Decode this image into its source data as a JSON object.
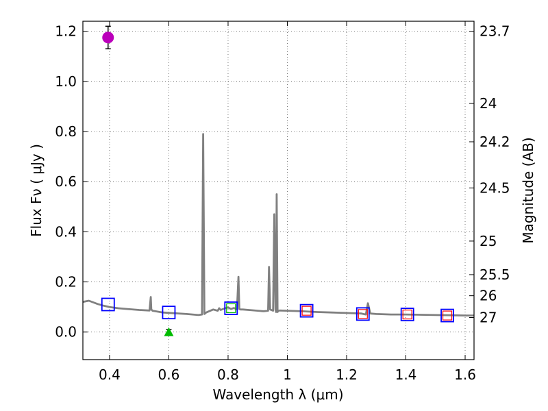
{
  "chart_data": {
    "type": "line",
    "xlabel": "Wavelength  λ (μm)",
    "ylabel": "Flux  Fν  ( μJy )",
    "ylabel_right": "Magnitude (AB)",
    "xlim": [
      0.31,
      1.63
    ],
    "ylim": [
      -0.11,
      1.24
    ],
    "x_ticks": [
      0.4,
      0.6,
      0.8,
      1.0,
      1.2,
      1.4,
      1.6
    ],
    "x_tick_labels": [
      "0.4",
      "0.6",
      "0.8",
      "1",
      "1.2",
      "1.4",
      "1.6"
    ],
    "y_ticks": [
      0.0,
      0.2,
      0.4,
      0.6,
      0.8,
      1.0,
      1.2
    ],
    "y_tick_labels": [
      "0.0",
      "0.2",
      "0.4",
      "0.6",
      "0.8",
      "1.0",
      "1.2"
    ],
    "right_ticks": [
      {
        "label": "23.7",
        "flux": 1.2
      },
      {
        "label": "24",
        "flux": 0.912
      },
      {
        "label": "24.2",
        "flux": 0.759
      },
      {
        "label": "24.5",
        "flux": 0.575
      },
      {
        "label": "25",
        "flux": 0.363
      },
      {
        "label": "25.5",
        "flux": 0.229
      },
      {
        "label": "26",
        "flux": 0.145
      },
      {
        "label": "27",
        "flux": 0.058
      }
    ],
    "grid": true,
    "series": [
      {
        "name": "model SED",
        "style": "line",
        "color": "#808080",
        "x": [
          0.31,
          0.33,
          0.36,
          0.38,
          0.4,
          0.43,
          0.46,
          0.5,
          0.535,
          0.539,
          0.541,
          0.545,
          0.58,
          0.62,
          0.66,
          0.7,
          0.712,
          0.716,
          0.72,
          0.726,
          0.75,
          0.765,
          0.77,
          0.775,
          0.79,
          0.8,
          0.81,
          0.82,
          0.83,
          0.835,
          0.838,
          0.842,
          0.85,
          0.88,
          0.92,
          0.935,
          0.938,
          0.942,
          0.952,
          0.956,
          0.96,
          0.962,
          0.964,
          0.967,
          0.97,
          0.975,
          1.0,
          1.05,
          1.1,
          1.15,
          1.2,
          1.25,
          1.265,
          1.272,
          1.28,
          1.3,
          1.35,
          1.4,
          1.45,
          1.5,
          1.55,
          1.6,
          1.63
        ],
        "values": [
          0.12,
          0.125,
          0.112,
          0.105,
          0.1,
          0.095,
          0.092,
          0.088,
          0.086,
          0.14,
          0.09,
          0.085,
          0.078,
          0.075,
          0.072,
          0.068,
          0.07,
          0.79,
          0.072,
          0.078,
          0.09,
          0.085,
          0.095,
          0.088,
          0.095,
          0.098,
          0.092,
          0.096,
          0.09,
          0.22,
          0.092,
          0.09,
          0.09,
          0.087,
          0.083,
          0.085,
          0.26,
          0.09,
          0.085,
          0.47,
          0.09,
          0.08,
          0.55,
          0.08,
          0.085,
          0.086,
          0.085,
          0.083,
          0.08,
          0.078,
          0.076,
          0.074,
          0.07,
          0.115,
          0.074,
          0.072,
          0.07,
          0.07,
          0.069,
          0.068,
          0.067,
          0.066,
          0.066
        ]
      },
      {
        "name": "photometry (blue squares)",
        "style": "square",
        "color": "#0000ff",
        "x": [
          0.395,
          0.6,
          0.81,
          1.065,
          1.255,
          1.405,
          1.54
        ],
        "values": [
          0.11,
          0.078,
          0.095,
          0.085,
          0.072,
          0.07,
          0.066
        ]
      },
      {
        "name": "model photometry (red squares)",
        "style": "square",
        "color": "#ff0000",
        "x": [
          1.065,
          1.255,
          1.405,
          1.54
        ],
        "values": [
          0.085,
          0.072,
          0.07,
          0.066
        ]
      },
      {
        "name": "model photometry (green square)",
        "style": "square",
        "color": "#00bb00",
        "x": [
          0.81
        ],
        "values": [
          0.095
        ]
      },
      {
        "name": "observed (magenta)",
        "style": "circle",
        "color": "#bb00bb",
        "x": [
          0.395
        ],
        "values": [
          1.175
        ],
        "errors": [
          0.045
        ]
      },
      {
        "name": "observed (green)",
        "style": "triangle",
        "color": "#00bb00",
        "x": [
          0.6
        ],
        "values": [
          0.0
        ],
        "errors": [
          0.01
        ]
      }
    ]
  }
}
